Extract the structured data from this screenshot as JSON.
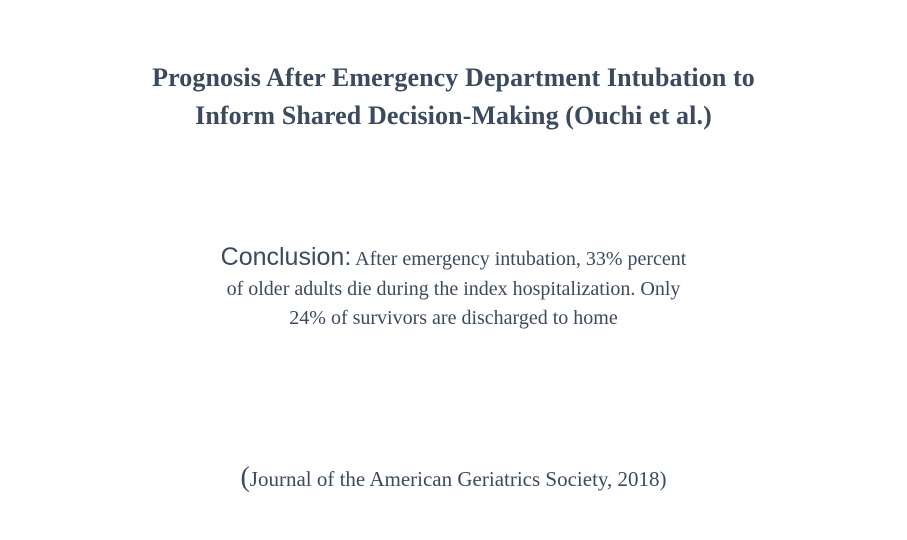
{
  "title": {
    "line1": "Prognosis After Emergency Department Intubation to",
    "line2": "Inform Shared Decision-Making (Ouchi et al.)"
  },
  "conclusion": {
    "label": "Conclusion:",
    "line1_text": " After emergency intubation, 33% percent",
    "line2": "of older adults die during the index hospitalization. Only",
    "line3": "24% of survivors are discharged to home"
  },
  "citation": {
    "open_paren": "(",
    "text": "Journal of the American Geriatrics Society, 2018)"
  }
}
